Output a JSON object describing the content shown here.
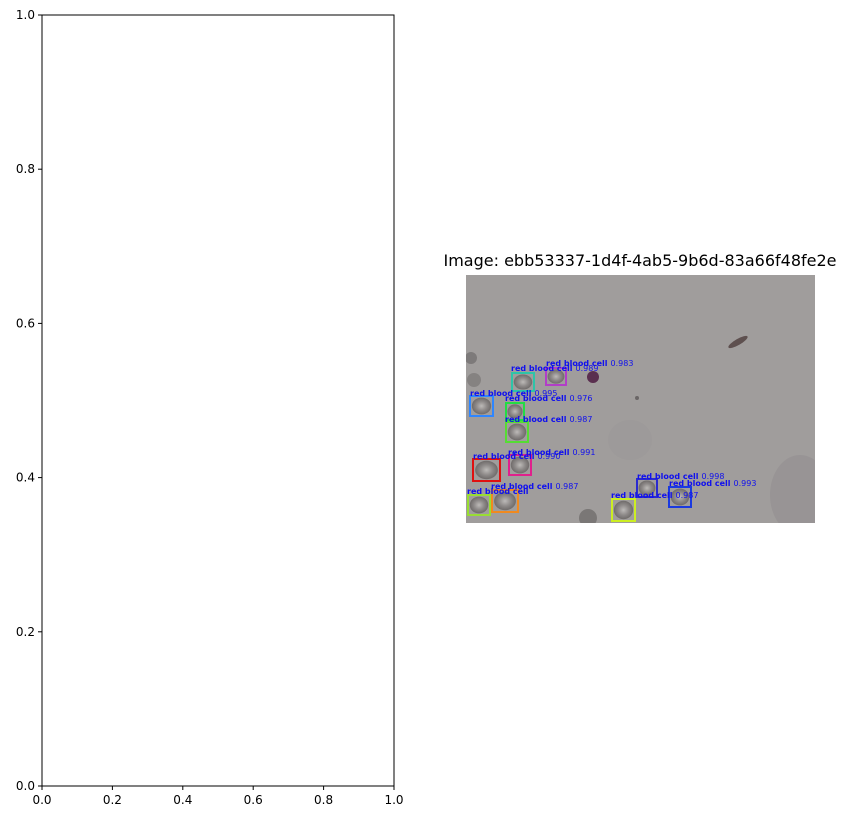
{
  "chart_data": [
    {
      "type": "scatter",
      "title": "",
      "xlabel": "",
      "ylabel": "",
      "xlim": [
        0,
        1
      ],
      "ylim": [
        0,
        1
      ],
      "xticks": [
        "0.0",
        "0.2",
        "0.4",
        "0.6",
        "0.8",
        "1.0"
      ],
      "yticks": [
        "0.0",
        "0.2",
        "0.4",
        "0.6",
        "0.8",
        "1.0"
      ],
      "series": [],
      "grid": false
    },
    {
      "type": "image",
      "title": "Image: ebb53337-1d4f-4ab5-9b6d-83a66f48fe2e",
      "detections": [
        {
          "label": "red blood cell",
          "score": "0.983",
          "color": "#b23ec8"
        },
        {
          "label": "red blood cell",
          "score": "0.989",
          "color": "#2ec4a8"
        },
        {
          "label": "red blood cell",
          "score": "0.995",
          "color": "#2e86ff"
        },
        {
          "label": "red blood cell",
          "score": "0.976",
          "color": "#22dd44"
        },
        {
          "label": "red blood cell",
          "score": "0.987",
          "color": "#55dd33"
        },
        {
          "label": "red blood cell",
          "score": "0.991",
          "color": "#e0208c"
        },
        {
          "label": "red blood cell",
          "score": "0.990",
          "color": "#e01010"
        },
        {
          "label": "red blood cell",
          "score": "0.987",
          "color": "#f08a20"
        },
        {
          "label": "red blood cell",
          "score": "",
          "color": "#99dd33"
        },
        {
          "label": "red blood cell",
          "score": "0.998",
          "color": "#2a2ad0"
        },
        {
          "label": "red blood cell",
          "score": "0.993",
          "color": "#1a3ae0"
        },
        {
          "label": "red blood cell",
          "score": "0.987",
          "color": "#ccee22"
        }
      ],
      "label_color": "#1010ee",
      "background_color": "#a09d9c"
    }
  ]
}
